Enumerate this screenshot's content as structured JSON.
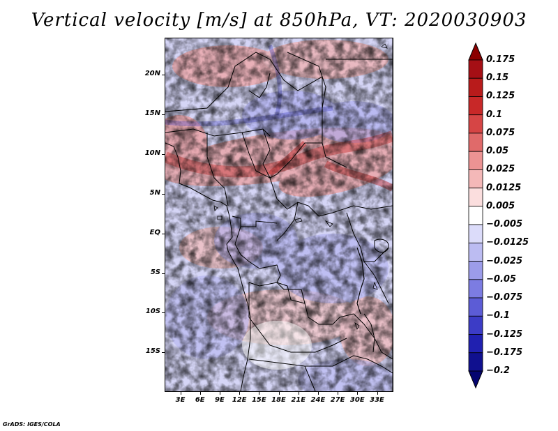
{
  "title": "Vertical velocity [m/s] at 850hPa, VT: 2020030903",
  "credit": "GrADS: IGES/COLA",
  "map": {
    "variable": "Vertical velocity",
    "units": "m/s",
    "level": "850hPa",
    "valid_time": "2020030903",
    "lat_labels": [
      "20N",
      "15N",
      "10N",
      "5N",
      "EQ",
      "5S",
      "10S",
      "15S"
    ],
    "lat_values": [
      20,
      15,
      10,
      5,
      0,
      -5,
      -10,
      -15
    ],
    "lon_labels": [
      "3E",
      "6E",
      "9E",
      "12E",
      "15E",
      "18E",
      "21E",
      "24E",
      "27E",
      "30E",
      "33E"
    ],
    "lon_values": [
      3,
      6,
      9,
      12,
      15,
      18,
      21,
      24,
      27,
      30,
      33
    ],
    "lat_range": [
      -20,
      24.7
    ],
    "lon_range": [
      0.6,
      35.5
    ]
  },
  "colorbar": {
    "labels": [
      "0.175",
      "0.15",
      "0.125",
      "0.1",
      "0.075",
      "0.05",
      "0.025",
      "0.0125",
      "0.005",
      "−0.005",
      "−0.0125",
      "−0.025",
      "−0.05",
      "−0.075",
      "−0.1",
      "−0.125",
      "−0.175",
      "−0.2"
    ],
    "colors": [
      "#8b0000",
      "#a50f15",
      "#b81b1b",
      "#c82828",
      "#d64545",
      "#e06a6a",
      "#ec9393",
      "#f4b8b8",
      "#fbdede",
      "#ffffff",
      "#dcdcfa",
      "#bcbcf2",
      "#9c9cea",
      "#7c7ce2",
      "#5c5cd6",
      "#3c3cc6",
      "#2020b0",
      "#10108f",
      "#050570"
    ]
  }
}
